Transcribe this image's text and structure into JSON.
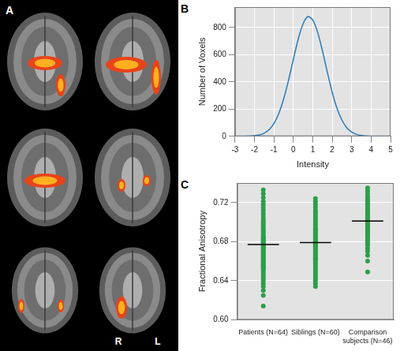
{
  "image_panel": {
    "panel_label": "A",
    "orientation_labels": [
      "R",
      "L"
    ]
  },
  "chart_data": [
    {
      "type": "line",
      "panel_label": "B",
      "x": [
        -3,
        -2.5,
        -2,
        -1.75,
        -1.5,
        -1.25,
        -1,
        -0.75,
        -0.5,
        -0.25,
        0,
        0.25,
        0.5,
        0.75,
        1,
        1.25,
        1.5,
        1.75,
        2,
        2.25,
        2.5,
        2.75,
        3,
        3.25,
        3.5,
        4,
        4.5,
        5
      ],
      "values": [
        0,
        0,
        4,
        10,
        23,
        48,
        94,
        167,
        273,
        410,
        565,
        714,
        827,
        880,
        855,
        765,
        627,
        471,
        324,
        205,
        119,
        63,
        31,
        14,
        6,
        0,
        0,
        0
      ],
      "color": "#2a7ab8",
      "x_label": "Intensity",
      "y_label": "Number of Voxels",
      "xlim": [
        -3,
        5
      ],
      "xticks": [
        -3,
        -2,
        -1,
        0,
        1,
        2,
        3,
        4,
        5
      ],
      "ylim": [
        0,
        950
      ],
      "yticks": [
        0,
        200,
        400,
        600,
        800
      ],
      "grid": true
    },
    {
      "type": "strip",
      "panel_label": "C",
      "categories": [
        "Patients (N=64)",
        "Siblings (N=60)",
        "Comparison subjects (N=46)"
      ],
      "values": [
        [
          0.733,
          0.729,
          0.725,
          0.721,
          0.718,
          0.715,
          0.712,
          0.709,
          0.706,
          0.703,
          0.701,
          0.699,
          0.697,
          0.695,
          0.693,
          0.691,
          0.69,
          0.688,
          0.686,
          0.685,
          0.684,
          0.683,
          0.682,
          0.681,
          0.68,
          0.679,
          0.678,
          0.677,
          0.676,
          0.675,
          0.674,
          0.673,
          0.672,
          0.671,
          0.67,
          0.669,
          0.668,
          0.667,
          0.666,
          0.665,
          0.664,
          0.663,
          0.662,
          0.661,
          0.66,
          0.659,
          0.658,
          0.657,
          0.656,
          0.655,
          0.654,
          0.653,
          0.652,
          0.65,
          0.648,
          0.646,
          0.644,
          0.642,
          0.64,
          0.637,
          0.634,
          0.63,
          0.625,
          0.614
        ],
        [
          0.724,
          0.721,
          0.718,
          0.715,
          0.712,
          0.71,
          0.708,
          0.706,
          0.704,
          0.702,
          0.7,
          0.698,
          0.696,
          0.694,
          0.693,
          0.692,
          0.691,
          0.69,
          0.689,
          0.688,
          0.687,
          0.686,
          0.685,
          0.684,
          0.683,
          0.682,
          0.681,
          0.68,
          0.679,
          0.678,
          0.677,
          0.676,
          0.675,
          0.674,
          0.673,
          0.672,
          0.671,
          0.67,
          0.669,
          0.668,
          0.667,
          0.666,
          0.665,
          0.664,
          0.663,
          0.662,
          0.661,
          0.66,
          0.658,
          0.656,
          0.654,
          0.652,
          0.65,
          0.648,
          0.646,
          0.644,
          0.642,
          0.64,
          0.637,
          0.634
        ],
        [
          0.735,
          0.732,
          0.729,
          0.726,
          0.724,
          0.722,
          0.72,
          0.718,
          0.716,
          0.714,
          0.712,
          0.711,
          0.71,
          0.709,
          0.708,
          0.707,
          0.706,
          0.705,
          0.704,
          0.703,
          0.702,
          0.701,
          0.7,
          0.699,
          0.698,
          0.697,
          0.696,
          0.695,
          0.694,
          0.693,
          0.692,
          0.691,
          0.69,
          0.689,
          0.688,
          0.686,
          0.684,
          0.682,
          0.68,
          0.678,
          0.676,
          0.673,
          0.67,
          0.666,
          0.66,
          0.649
        ]
      ],
      "means": [
        0.677,
        0.679,
        0.701
      ],
      "color": "#2e9e4a",
      "y_label": "Fractional Anisotropy",
      "ylim": [
        0.6,
        0.74
      ],
      "yticks": [
        {
          "value": 0.6,
          "label": "0.60"
        },
        {
          "value": 0.64,
          "label": "0.64"
        },
        {
          "value": 0.68,
          "label": "0.68"
        },
        {
          "value": 0.72,
          "label": "0.72"
        }
      ],
      "grid": true
    }
  ]
}
